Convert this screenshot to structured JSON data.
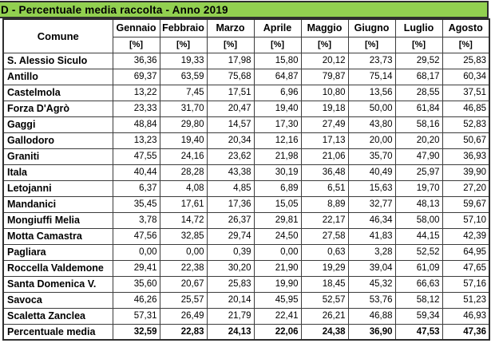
{
  "title_bar": {
    "text": "D - Percentuale media raccolta - Anno 2019",
    "background": "#92D050"
  },
  "table": {
    "corner_header": "Comune",
    "unit_label": "[%]",
    "columns": [
      "Gennaio",
      "Febbraio",
      "Marzo",
      "Aprile",
      "Maggio",
      "Giugno",
      "Luglio",
      "Agosto"
    ],
    "rows": [
      {
        "name": "S. Alessio Siculo",
        "values": [
          "36,36",
          "19,33",
          "17,98",
          "15,80",
          "20,12",
          "23,73",
          "29,52",
          "25,83"
        ]
      },
      {
        "name": "Antillo",
        "values": [
          "69,37",
          "63,59",
          "75,68",
          "64,87",
          "79,87",
          "75,14",
          "68,17",
          "60,34"
        ]
      },
      {
        "name": "Castelmola",
        "values": [
          "13,22",
          "7,45",
          "17,51",
          "6,96",
          "10,80",
          "13,56",
          "28,55",
          "37,51"
        ]
      },
      {
        "name": "Forza D'Agrò",
        "values": [
          "23,33",
          "31,70",
          "20,47",
          "19,40",
          "19,18",
          "50,00",
          "61,84",
          "46,85"
        ]
      },
      {
        "name": "Gaggi",
        "values": [
          "48,84",
          "29,80",
          "14,57",
          "17,30",
          "27,49",
          "43,80",
          "58,16",
          "52,83"
        ]
      },
      {
        "name": "Gallodoro",
        "values": [
          "13,23",
          "19,40",
          "20,34",
          "12,16",
          "17,13",
          "20,00",
          "20,20",
          "50,67"
        ]
      },
      {
        "name": "Graniti",
        "values": [
          "47,55",
          "24,16",
          "23,62",
          "21,98",
          "21,06",
          "35,70",
          "47,90",
          "36,93"
        ]
      },
      {
        "name": "Itala",
        "values": [
          "40,44",
          "28,28",
          "43,38",
          "30,19",
          "36,48",
          "40,49",
          "25,97",
          "39,90"
        ]
      },
      {
        "name": "Letojanni",
        "values": [
          "6,37",
          "4,08",
          "4,85",
          "6,89",
          "6,51",
          "15,63",
          "19,70",
          "27,20"
        ]
      },
      {
        "name": "Mandanici",
        "values": [
          "35,45",
          "17,61",
          "17,36",
          "15,05",
          "8,89",
          "32,77",
          "48,13",
          "59,67"
        ]
      },
      {
        "name": "Mongiuffi Melia",
        "values": [
          "3,78",
          "14,72",
          "26,37",
          "29,81",
          "22,17",
          "46,34",
          "58,00",
          "57,10"
        ]
      },
      {
        "name": "Motta Camastra",
        "values": [
          "47,56",
          "32,85",
          "29,74",
          "24,50",
          "27,58",
          "41,83",
          "44,15",
          "42,39"
        ]
      },
      {
        "name": "Pagliara",
        "values": [
          "0,00",
          "0,00",
          "0,39",
          "0,00",
          "0,63",
          "3,28",
          "52,52",
          "64,95"
        ]
      },
      {
        "name": "Roccella Valdemone",
        "values": [
          "29,41",
          "22,38",
          "30,20",
          "21,90",
          "19,29",
          "39,04",
          "61,09",
          "47,65"
        ]
      },
      {
        "name": "Santa Domenica V.",
        "values": [
          "35,60",
          "20,67",
          "25,83",
          "19,90",
          "18,45",
          "45,32",
          "66,63",
          "57,16"
        ]
      },
      {
        "name": "Savoca",
        "values": [
          "46,26",
          "25,57",
          "20,14",
          "45,95",
          "52,57",
          "53,76",
          "58,12",
          "51,23"
        ]
      },
      {
        "name": "Scaletta Zanclea",
        "values": [
          "57,31",
          "26,49",
          "21,79",
          "22,41",
          "26,21",
          "46,88",
          "59,34",
          "46,93"
        ]
      }
    ],
    "summary_row": {
      "name": "Percentuale media",
      "values": [
        "32,59",
        "22,83",
        "24,13",
        "22,06",
        "24,38",
        "36,90",
        "47,53",
        "47,36"
      ]
    }
  },
  "colors": {
    "title_green": "#92D050",
    "border_dark": "#2e2e2e",
    "text": "#000000"
  }
}
